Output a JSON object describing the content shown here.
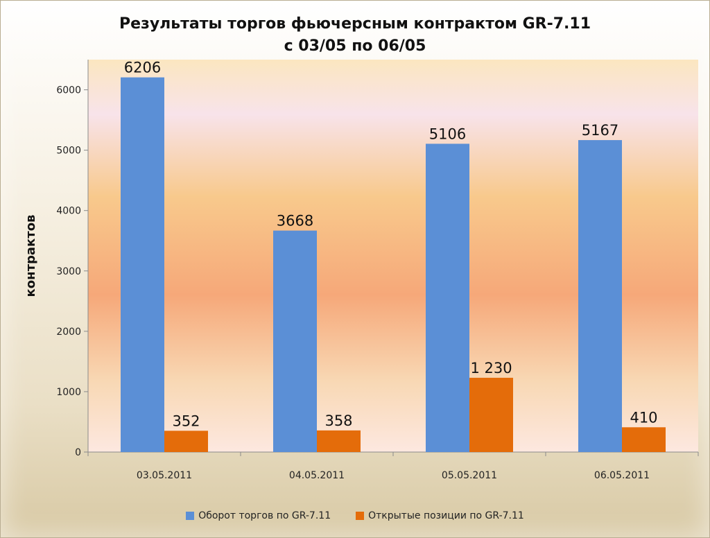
{
  "chart_data": {
    "type": "bar",
    "title": "Результаты торгов фьючерсным контрактом GR-7.11",
    "subtitle": "с  03/05 по 06/05",
    "ylabel": "контрактов",
    "xlabel": "",
    "ylim": [
      0,
      6500
    ],
    "yticks": [
      "0",
      "1000",
      "2000",
      "3000",
      "4000",
      "5000",
      "6000"
    ],
    "grid": false,
    "legend_position": "bottom",
    "categories": [
      "03.05.2011",
      "04.05.2011",
      "05.05.2011",
      "06.05.2011"
    ],
    "series": [
      {
        "name": "Оборот торгов по GR-7.11",
        "color": "#5b8fd6",
        "values": [
          6206,
          3668,
          5106,
          5167
        ],
        "labels": [
          "6206",
          "3668",
          "5106",
          "5167"
        ]
      },
      {
        "name": "Открытые позиции по GR-7.11",
        "color": "#e46c0a",
        "values": [
          352,
          358,
          1230,
          410
        ],
        "labels": [
          "352",
          "358",
          "1 230",
          "410"
        ]
      }
    ]
  }
}
